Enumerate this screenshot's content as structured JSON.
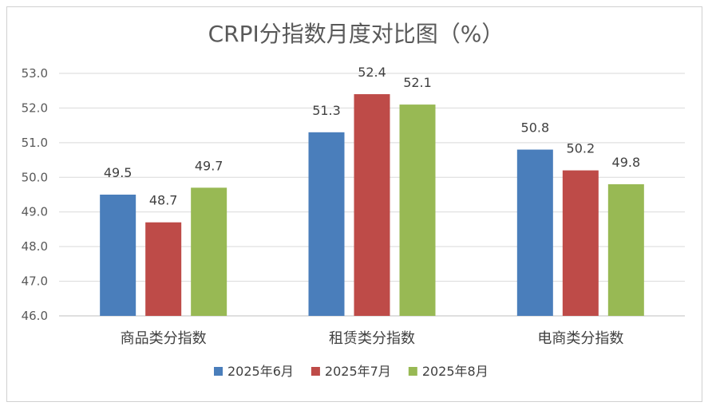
{
  "chart_data": {
    "type": "bar",
    "title": "CRPI分指数月度对比图（%）",
    "categories": [
      "商品类分指数",
      "租赁类分指数",
      "电商类分指数"
    ],
    "series": [
      {
        "name": "2025年6月",
        "values": [
          49.5,
          51.3,
          50.8
        ],
        "color": "#4a7ebb"
      },
      {
        "name": "2025年7月",
        "values": [
          48.7,
          52.4,
          50.2
        ],
        "color": "#be4b48"
      },
      {
        "name": "2025年8月",
        "values": [
          49.7,
          52.1,
          49.8
        ],
        "color": "#98b954"
      }
    ],
    "ylim": [
      46.0,
      53.0
    ],
    "yticks": [
      "46.0",
      "47.0",
      "48.0",
      "49.0",
      "50.0",
      "51.0",
      "52.0",
      "53.0"
    ],
    "grid": true,
    "legend_position": "bottom"
  }
}
